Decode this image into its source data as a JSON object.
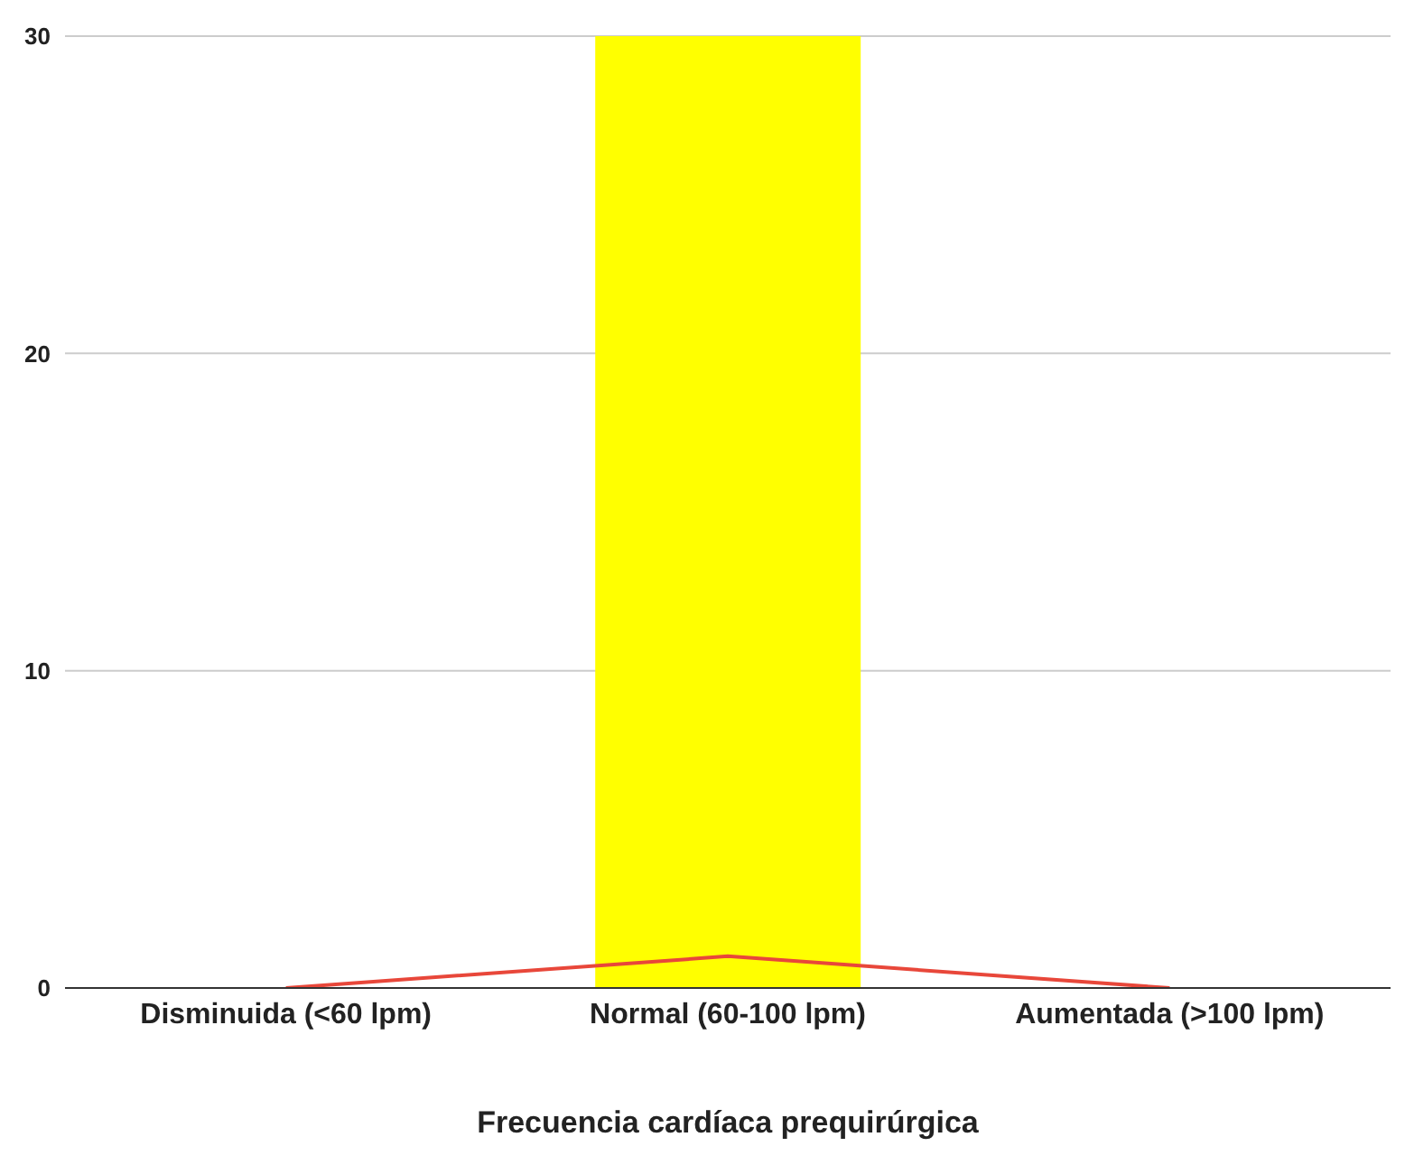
{
  "chart_data": {
    "type": "bar",
    "xlabel": "Frecuencia cardíaca prequirúrgica",
    "categories": [
      "Disminuida (<60 lpm)",
      "Normal (60-100 lpm)",
      "Aumentada (>100 lpm)"
    ],
    "series": [
      {
        "color": "#ffff00",
        "values": [
          0,
          30,
          0
        ]
      },
      {
        "type": "line",
        "color": "#e8473a",
        "values": [
          0,
          1,
          0
        ]
      }
    ],
    "ylim": [
      0,
      30
    ],
    "yticks": [
      0,
      10,
      20,
      30
    ],
    "grid": "y",
    "marker": "none"
  }
}
